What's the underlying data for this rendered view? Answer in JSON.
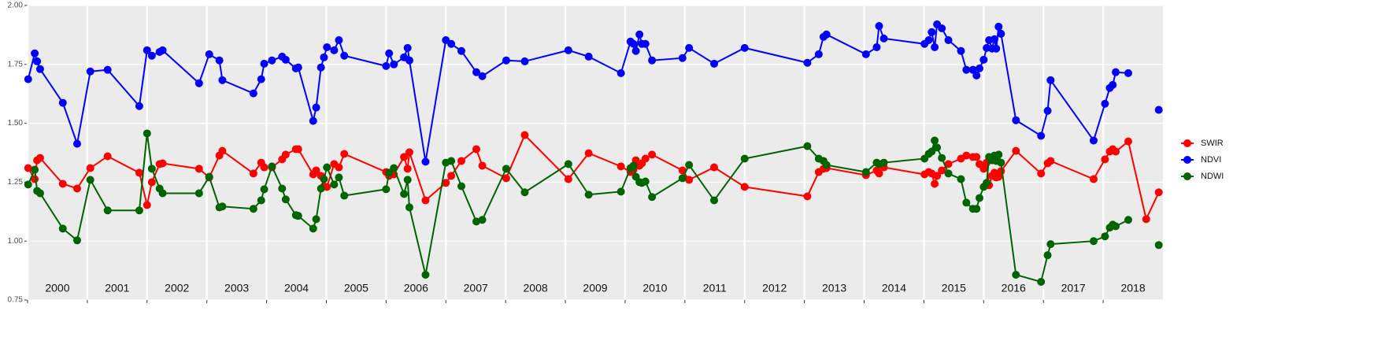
{
  "chart_data": {
    "type": "line",
    "x": [
      2000.01,
      2000.12,
      2000.16,
      2000.21,
      2000.59,
      2000.83,
      2001.05,
      2001.34,
      2001.87,
      2002.0,
      2002.08,
      2002.21,
      2002.26,
      2002.87,
      2003.04,
      2003.21,
      2003.26,
      2003.78,
      2003.91,
      2003.96,
      2004.09,
      2004.26,
      2004.32,
      2004.49,
      2004.53,
      2004.78,
      2004.83,
      2004.91,
      2004.96,
      2005.01,
      2005.13,
      2005.21,
      2005.3,
      2006.0,
      2006.05,
      2006.13,
      2006.3,
      2006.36,
      2006.39,
      2006.66,
      2007.0,
      2007.09,
      2007.26,
      2007.51,
      2007.61,
      2008.01,
      2008.32,
      2009.05,
      2009.39,
      2009.93,
      2010.09,
      2010.14,
      2010.18,
      2010.24,
      2010.28,
      2010.34,
      2010.45,
      2010.96,
      2011.07,
      2011.49,
      2012.0,
      2013.05,
      2013.24,
      2013.32,
      2013.37,
      2014.03,
      2014.21,
      2014.25,
      2014.33,
      2015.01,
      2015.08,
      2015.13,
      2015.18,
      2015.22,
      2015.3,
      2015.41,
      2015.62,
      2015.71,
      2015.82,
      2015.88,
      2015.93,
      2016.0,
      2016.05,
      2016.09,
      2016.14,
      2016.18,
      2016.21,
      2016.25,
      2016.29,
      2016.54,
      2016.96,
      2017.07,
      2017.12,
      2017.84,
      2018.03,
      2018.11,
      2018.16,
      2018.21,
      2018.42,
      2018.72,
      2018.93
    ],
    "series": [
      {
        "name": "SWIR",
        "color": "#ff0000",
        "values": [
          1.31,
          1.263,
          1.343,
          1.353,
          1.243,
          1.223,
          1.31,
          1.36,
          1.29,
          1.153,
          1.25,
          1.327,
          1.33,
          1.307,
          1.27,
          1.363,
          1.383,
          1.287,
          1.333,
          1.313,
          1.313,
          1.347,
          1.367,
          1.39,
          1.39,
          1.283,
          1.3,
          1.277,
          1.233,
          1.23,
          1.327,
          1.313,
          1.37,
          1.293,
          1.277,
          1.283,
          1.357,
          1.307,
          1.377,
          1.173,
          1.247,
          1.277,
          1.34,
          1.39,
          1.32,
          1.267,
          1.45,
          1.263,
          1.373,
          1.317,
          1.293,
          1.303,
          1.343,
          1.32,
          1.33,
          1.35,
          1.367,
          1.3,
          1.26,
          1.313,
          1.23,
          1.19,
          1.293,
          1.307,
          1.31,
          1.28,
          1.3,
          1.287,
          1.313,
          1.283,
          1.293,
          1.287,
          1.243,
          1.277,
          1.3,
          1.327,
          1.35,
          1.363,
          1.357,
          1.357,
          1.327,
          1.307,
          1.333,
          1.237,
          1.277,
          1.29,
          1.27,
          1.273,
          1.297,
          1.383,
          1.287,
          1.33,
          1.34,
          1.263,
          1.347,
          1.38,
          1.39,
          1.38,
          1.423,
          1.093,
          1.207
        ]
      },
      {
        "name": "NDVI",
        "color": "#0000ff",
        "values": [
          1.687,
          1.797,
          1.763,
          1.73,
          1.587,
          1.413,
          1.72,
          1.727,
          1.573,
          1.81,
          1.787,
          1.803,
          1.81,
          1.67,
          1.793,
          1.767,
          1.683,
          1.627,
          1.687,
          1.753,
          1.767,
          1.783,
          1.77,
          1.733,
          1.737,
          1.51,
          1.567,
          1.737,
          1.78,
          1.823,
          1.81,
          1.853,
          1.787,
          1.743,
          1.797,
          1.75,
          1.78,
          1.82,
          1.767,
          1.337,
          1.853,
          1.837,
          1.807,
          1.717,
          1.7,
          1.767,
          1.763,
          1.81,
          1.783,
          1.713,
          1.847,
          1.837,
          1.807,
          1.877,
          1.837,
          1.837,
          1.767,
          1.777,
          1.82,
          1.753,
          1.82,
          1.757,
          1.793,
          1.867,
          1.877,
          1.793,
          1.823,
          1.913,
          1.86,
          1.837,
          1.853,
          1.887,
          1.823,
          1.92,
          1.903,
          1.853,
          1.807,
          1.727,
          1.727,
          1.703,
          1.733,
          1.77,
          1.82,
          1.853,
          1.817,
          1.857,
          1.817,
          1.91,
          1.88,
          1.513,
          1.447,
          1.553,
          1.683,
          1.427,
          1.583,
          1.65,
          1.663,
          1.717,
          1.713,
          null,
          1.557
        ]
      },
      {
        "name": "NDWI",
        "color": "#006400",
        "values": [
          1.24,
          1.303,
          1.213,
          1.203,
          1.053,
          1.003,
          1.26,
          1.13,
          1.13,
          1.457,
          1.307,
          1.223,
          1.203,
          1.203,
          1.273,
          1.143,
          1.147,
          1.137,
          1.173,
          1.22,
          1.317,
          1.223,
          1.177,
          1.11,
          1.107,
          1.053,
          1.093,
          1.223,
          1.263,
          1.313,
          1.24,
          1.27,
          1.193,
          1.22,
          1.29,
          1.31,
          1.2,
          1.26,
          1.143,
          0.857,
          1.333,
          1.34,
          1.233,
          1.083,
          1.09,
          1.307,
          1.207,
          1.327,
          1.197,
          1.21,
          1.31,
          1.32,
          1.273,
          1.25,
          1.247,
          1.253,
          1.187,
          1.267,
          1.323,
          1.173,
          1.35,
          1.403,
          1.35,
          1.34,
          1.323,
          1.293,
          1.333,
          1.327,
          1.333,
          1.35,
          1.37,
          1.38,
          1.427,
          1.397,
          1.353,
          1.287,
          1.263,
          1.163,
          1.137,
          1.137,
          1.183,
          1.23,
          1.247,
          1.357,
          1.343,
          1.363,
          1.34,
          1.367,
          1.333,
          0.857,
          0.827,
          0.94,
          0.987,
          1.0,
          1.02,
          1.057,
          1.07,
          1.063,
          1.09,
          null,
          0.983
        ]
      }
    ],
    "xlim": [
      2000,
      2019
    ],
    "xticks": [
      2000,
      2001,
      2002,
      2003,
      2004,
      2005,
      2006,
      2007,
      2008,
      2009,
      2010,
      2011,
      2012,
      2013,
      2014,
      2015,
      2016,
      2017,
      2018
    ],
    "ylim": [
      0.75,
      2.0
    ],
    "yticks": [
      0.75,
      {
        "value": 1,
        "label": "1.00"
      },
      1.25,
      {
        "value": 1.5,
        "label": "1.50"
      },
      1.75,
      {
        "value": 2,
        "label": "2.00"
      }
    ],
    "grid": true,
    "legend": "right"
  }
}
